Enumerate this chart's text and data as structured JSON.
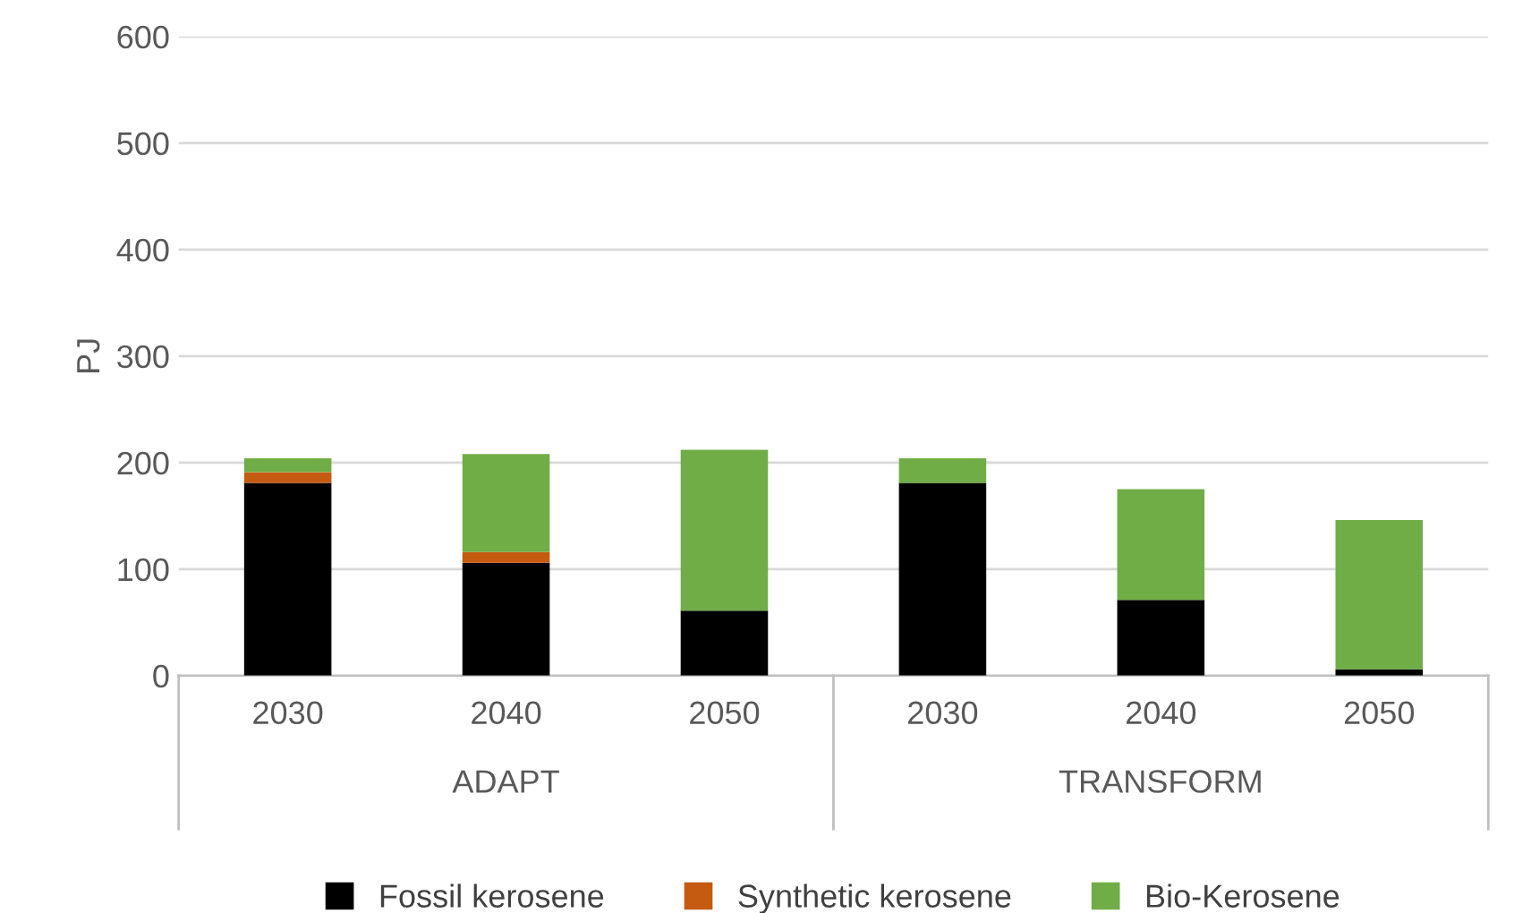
{
  "chart_data": {
    "type": "bar",
    "stacked": true,
    "ylabel": "PJ",
    "categories": [
      "2030",
      "2040",
      "2050",
      "2030",
      "2040",
      "2050"
    ],
    "annotations": [
      "ADAPT",
      "TRANSFORM"
    ],
    "series": [
      {
        "name": "Fossil kerosene",
        "color": "#000000",
        "values": [
          181,
          106,
          61,
          181,
          71,
          6
        ]
      },
      {
        "name": "Synthetic kerosene",
        "color": "#c55a11",
        "values": [
          10,
          10,
          0,
          0,
          0,
          0
        ]
      },
      {
        "name": "Bio-Kerosene",
        "color": "#70ad47",
        "values": [
          13,
          92,
          151,
          23,
          104,
          140
        ]
      }
    ],
    "ylim": [
      0,
      600
    ],
    "yticks": [
      0,
      100,
      200,
      300,
      400,
      500,
      600
    ],
    "grid": "y",
    "legend": "bottom"
  }
}
